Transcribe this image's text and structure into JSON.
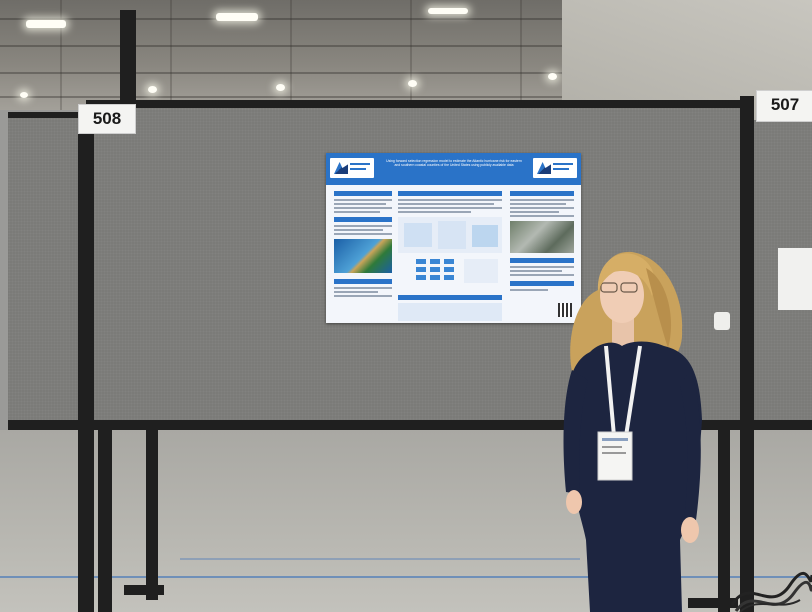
{
  "booths": {
    "left_number": "508",
    "right_number": "507"
  },
  "poster": {
    "title_text": "Using forward selection regression model to estimate the Atlantic hurricane risk for eastern and southern coastal counties of the United States using publicly available data"
  },
  "colors": {
    "poster_accent": "#2a73c8",
    "panel_gray": "#7b7b78",
    "frame_black": "#1f1f1f",
    "dress_navy": "#1d2540",
    "hair_blonde": "#c9a25c",
    "floor_line_blue": "#6f8fb8"
  }
}
